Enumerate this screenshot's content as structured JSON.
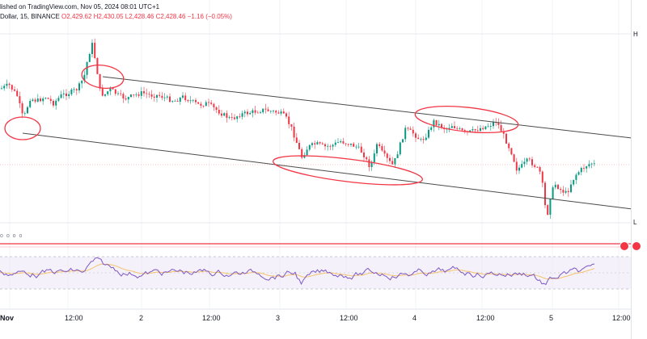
{
  "header": {
    "line1": "lished on TradingView.com, Nov 05, 2024 08:01 UTC+1",
    "line2_symbol": "Dollar, 15, BINANCE",
    "ohlc": "O2,429.62  H2,430.05  L2,428.46  C2,428.46  −1.16 (−0.05%)"
  },
  "price_axis": {
    "top_label": "H",
    "bottom_label": "L"
  },
  "rsi_panel": {
    "label": "o o o o"
  },
  "time_axis": {
    "labels": [
      "Nov",
      "12:00",
      "2",
      "12:00",
      "3",
      "12:00",
      "4",
      "12:00",
      "5",
      "12:00"
    ]
  },
  "colors": {
    "up": "#089981",
    "down": "#f23645",
    "channel": "#4a4a4a",
    "ellipse": "#f23645",
    "rsi_line": "#7e57c2",
    "rsi_ma": "#f5c36b",
    "rsi_band": "#ede7f6"
  },
  "icons": [
    "flag-icon-left",
    "flag-icon-right"
  ]
}
